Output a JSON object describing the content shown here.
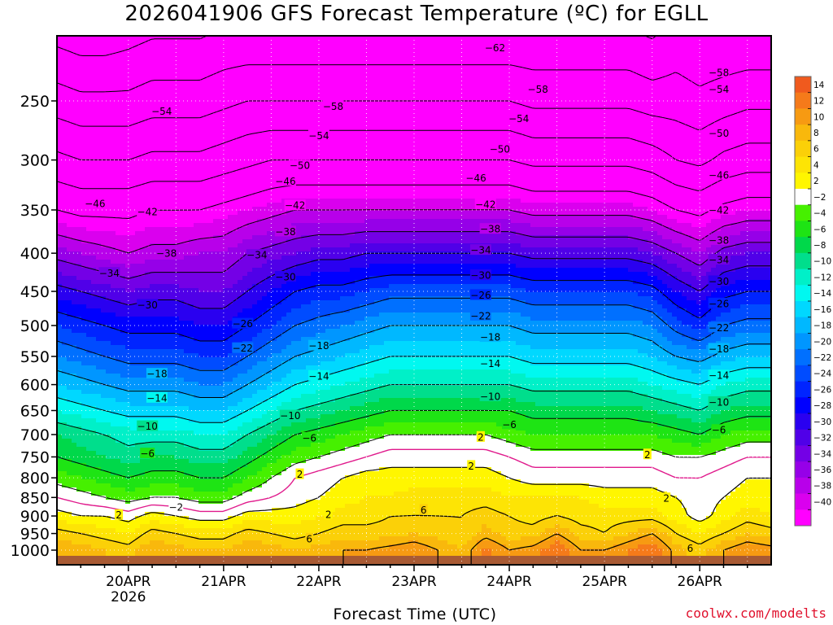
{
  "title": "2026041906 GFS Forecast Temperature (ºC) for EGLL",
  "source": "coolwx.com/modelts",
  "chart_data": {
    "type": "heatmap",
    "title": "2026041906 GFS Forecast Temperature (ºC) for EGLL",
    "xlabel": "Forecast Time (UTC)",
    "ylabel": "",
    "x_unit": "days since 2026-04-19 06Z",
    "x_range": [
      0,
      7.5
    ],
    "y_range": [
      1000,
      200
    ],
    "y_scale": "log pressure (hPa)",
    "y_ticks": [
      250,
      300,
      350,
      400,
      450,
      500,
      550,
      600,
      650,
      700,
      750,
      800,
      850,
      900,
      950,
      1000
    ],
    "x_ticks": [
      {
        "t": 0.75,
        "label": "20APR",
        "sub": "2026"
      },
      {
        "t": 1.75,
        "label": "21APR",
        "sub": ""
      },
      {
        "t": 2.75,
        "label": "22APR",
        "sub": ""
      },
      {
        "t": 3.75,
        "label": "23APR",
        "sub": ""
      },
      {
        "t": 4.75,
        "label": "24APR",
        "sub": ""
      },
      {
        "t": 5.75,
        "label": "25APR",
        "sub": ""
      },
      {
        "t": 6.75,
        "label": "26APR",
        "sub": ""
      }
    ],
    "colorbar": {
      "labels": [
        14,
        12,
        10,
        8,
        6,
        4,
        2,
        -2,
        -4,
        -6,
        -8,
        -10,
        -12,
        -14,
        -16,
        -18,
        -20,
        -22,
        -24,
        -26,
        -28,
        -30,
        -32,
        -34,
        -36,
        -38,
        -40
      ],
      "colors": [
        "#f05a1e",
        "#f57a1a",
        "#f79a12",
        "#f9b80c",
        "#fbd008",
        "#fde405",
        "#fff600",
        "#ffffff",
        "#46f000",
        "#1ee414",
        "#00d84a",
        "#00de8c",
        "#00f0c8",
        "#00f8f0",
        "#00d8ff",
        "#00b8ff",
        "#0096ff",
        "#0070ff",
        "#004cff",
        "#0024ff",
        "#0000ff",
        "#2a00f0",
        "#5000e8",
        "#7400e6",
        "#9600e8",
        "#b800ea",
        "#da00ee",
        "#ff00ff"
      ]
    },
    "isotherm_interval": 4,
    "freezing_line_color": "#e01a8c",
    "isotherms_solid": [
      2,
      6,
      10
    ],
    "isotherms_dashed": [
      -2,
      -6,
      -10,
      -14,
      -18,
      -22,
      -26,
      -30,
      -34,
      -38,
      -42,
      -46,
      -50,
      -54,
      -58,
      -62
    ],
    "times": [
      0,
      0.25,
      0.5,
      0.75,
      1,
      1.25,
      1.5,
      1.75,
      2,
      2.25,
      2.5,
      2.75,
      3,
      3.25,
      3.5,
      3.75,
      4,
      4.25,
      4.5,
      4.75,
      5,
      5.25,
      5.5,
      5.75,
      6,
      6.25,
      6.5,
      6.75,
      7,
      7.25,
      7.5
    ],
    "levels_hpa": [
      1000,
      950,
      900,
      850,
      800,
      750,
      700,
      650,
      600,
      550,
      500,
      450,
      400,
      350,
      300,
      250,
      200
    ],
    "temperature_c": [
      [
        10,
        9,
        8,
        7,
        10,
        9,
        8,
        8,
        10,
        9,
        8,
        9,
        10,
        10,
        11,
        12,
        10,
        8,
        13,
        10,
        11,
        14,
        10,
        10,
        12,
        14,
        9,
        7,
        10,
        12,
        11
      ],
      [
        7,
        6,
        5,
        4,
        7,
        6,
        5,
        5,
        7,
        6,
        5,
        6,
        7,
        7,
        7,
        8,
        7,
        6,
        9,
        7,
        7,
        10,
        7,
        6,
        8,
        10,
        6,
        4,
        6,
        8,
        7
      ],
      [
        3,
        2,
        2,
        1,
        3,
        2,
        1,
        1,
        3,
        3,
        3,
        4,
        5,
        5,
        6,
        6,
        6,
        6,
        7,
        6,
        5,
        6,
        5,
        5,
        5,
        5,
        3,
        1,
        3,
        5,
        4
      ],
      [
        0,
        -1,
        -2,
        -3,
        -2,
        -2,
        -3,
        -3,
        -1,
        0,
        1,
        2,
        3,
        4,
        4,
        5,
        5,
        5,
        5,
        4,
        4,
        4,
        4,
        3,
        3,
        3,
        2,
        1,
        2,
        3,
        3
      ],
      [
        -3,
        -4,
        -5,
        -6,
        -5,
        -5,
        -6,
        -6,
        -4,
        -2,
        0,
        1,
        2,
        3,
        3,
        3,
        3,
        3,
        3,
        2,
        1,
        1,
        1,
        1,
        1,
        1,
        0,
        0,
        1,
        2,
        2
      ],
      [
        -6,
        -7,
        -8,
        -9,
        -8,
        -8,
        -9,
        -9,
        -7,
        -5,
        -3,
        -2,
        -1,
        0,
        1,
        1,
        1,
        1,
        1,
        0,
        -1,
        -1,
        -1,
        -1,
        -1,
        -1,
        -2,
        -2,
        -1,
        0,
        0
      ],
      [
        -8,
        -9,
        -10,
        -11,
        -11,
        -11,
        -12,
        -12,
        -10,
        -8,
        -6,
        -5,
        -4,
        -3,
        -2,
        -2,
        -2,
        -2,
        -2,
        -3,
        -4,
        -4,
        -4,
        -4,
        -4,
        -4,
        -5,
        -6,
        -4,
        -3,
        -3
      ],
      [
        -12,
        -13,
        -14,
        -15,
        -15,
        -15,
        -16,
        -16,
        -14,
        -12,
        -10,
        -9,
        -8,
        -7,
        -6,
        -6,
        -6,
        -6,
        -6,
        -6,
        -7,
        -7,
        -7,
        -7,
        -7,
        -8,
        -9,
        -10,
        -8,
        -7,
        -7
      ],
      [
        -16,
        -17,
        -18,
        -19,
        -19,
        -19,
        -20,
        -20,
        -18,
        -16,
        -14,
        -13,
        -12,
        -11,
        -10,
        -10,
        -10,
        -10,
        -10,
        -10,
        -11,
        -11,
        -11,
        -11,
        -11,
        -12,
        -13,
        -14,
        -12,
        -11,
        -11
      ],
      [
        -20,
        -21,
        -22,
        -23,
        -23,
        -23,
        -24,
        -24,
        -22,
        -20,
        -18,
        -17,
        -16,
        -15,
        -14,
        -14,
        -14,
        -14,
        -14,
        -14,
        -15,
        -15,
        -15,
        -15,
        -15,
        -16,
        -18,
        -19,
        -17,
        -16,
        -16
      ],
      [
        -24,
        -25,
        -26,
        -27,
        -27,
        -27,
        -28,
        -28,
        -26,
        -24,
        -22,
        -21,
        -20,
        -19,
        -18,
        -18,
        -18,
        -18,
        -18,
        -18,
        -19,
        -19,
        -19,
        -19,
        -19,
        -20,
        -23,
        -25,
        -22,
        -21,
        -21
      ],
      [
        -29,
        -30,
        -31,
        -32,
        -31,
        -31,
        -32,
        -32,
        -30,
        -28,
        -26,
        -25,
        -25,
        -24,
        -23,
        -23,
        -23,
        -23,
        -23,
        -23,
        -24,
        -24,
        -24,
        -24,
        -24,
        -25,
        -28,
        -30,
        -27,
        -26,
        -26
      ],
      [
        -35,
        -36,
        -37,
        -38,
        -37,
        -37,
        -36,
        -36,
        -34,
        -33,
        -32,
        -31,
        -31,
        -30,
        -30,
        -30,
        -30,
        -30,
        -30,
        -30,
        -31,
        -31,
        -31,
        -31,
        -31,
        -32,
        -34,
        -36,
        -33,
        -32,
        -32
      ],
      [
        -42,
        -43,
        -43,
        -43,
        -42,
        -42,
        -42,
        -41,
        -40,
        -39,
        -38,
        -38,
        -38,
        -38,
        -38,
        -38,
        -38,
        -38,
        -38,
        -38,
        -39,
        -39,
        -39,
        -39,
        -39,
        -40,
        -42,
        -43,
        -41,
        -40,
        -40
      ],
      [
        -49,
        -50,
        -50,
        -50,
        -49,
        -49,
        -49,
        -48,
        -47,
        -46,
        -46,
        -46,
        -46,
        -46,
        -46,
        -46,
        -46,
        -46,
        -46,
        -46,
        -47,
        -47,
        -47,
        -47,
        -47,
        -48,
        -50,
        -51,
        -49,
        -48,
        -48
      ],
      [
        -56,
        -57,
        -57,
        -57,
        -56,
        -56,
        -56,
        -55,
        -54,
        -54,
        -54,
        -54,
        -54,
        -54,
        -54,
        -54,
        -54,
        -54,
        -54,
        -54,
        -55,
        -55,
        -55,
        -55,
        -55,
        -56,
        -56,
        -57,
        -56,
        -55,
        -55
      ],
      [
        -64,
        -65,
        -65,
        -64,
        -63,
        -63,
        -63,
        -62,
        -62,
        -62,
        -62,
        -62,
        -62,
        -62,
        -62,
        -62,
        -62,
        -62,
        -62,
        -62,
        -62,
        -62,
        -62,
        -62,
        -62,
        -63,
        -61,
        -62,
        -62,
        -62,
        -62
      ]
    ],
    "contour_labels": [
      {
        "v": -62,
        "t": 4.6,
        "p": 212
      },
      {
        "v": -58,
        "t": 2.9,
        "p": 254
      },
      {
        "v": -58,
        "t": 5.05,
        "p": 241
      },
      {
        "v": -58,
        "t": 6.95,
        "p": 229
      },
      {
        "v": -54,
        "t": 1.1,
        "p": 258
      },
      {
        "v": -54,
        "t": 2.75,
        "p": 278
      },
      {
        "v": -54,
        "t": 4.85,
        "p": 264
      },
      {
        "v": -54,
        "t": 6.95,
        "p": 241
      },
      {
        "v": -50,
        "t": 2.55,
        "p": 305
      },
      {
        "v": -50,
        "t": 4.65,
        "p": 290
      },
      {
        "v": -50,
        "t": 6.95,
        "p": 276
      },
      {
        "v": -46,
        "t": 0.4,
        "p": 343
      },
      {
        "v": -46,
        "t": 2.4,
        "p": 320
      },
      {
        "v": -46,
        "t": 4.4,
        "p": 317
      },
      {
        "v": -46,
        "t": 6.95,
        "p": 314
      },
      {
        "v": -42,
        "t": 0.95,
        "p": 352
      },
      {
        "v": -42,
        "t": 2.5,
        "p": 345
      },
      {
        "v": -42,
        "t": 4.5,
        "p": 344
      },
      {
        "v": -42,
        "t": 6.95,
        "p": 350
      },
      {
        "v": -38,
        "t": 1.15,
        "p": 400
      },
      {
        "v": -38,
        "t": 2.4,
        "p": 374
      },
      {
        "v": -38,
        "t": 4.55,
        "p": 371
      },
      {
        "v": -38,
        "t": 6.95,
        "p": 384
      },
      {
        "v": -34,
        "t": 0.55,
        "p": 425
      },
      {
        "v": -34,
        "t": 2.1,
        "p": 402
      },
      {
        "v": -34,
        "t": 4.45,
        "p": 396
      },
      {
        "v": -34,
        "t": 6.95,
        "p": 408
      },
      {
        "v": -30,
        "t": 0.95,
        "p": 469
      },
      {
        "v": -30,
        "t": 2.4,
        "p": 430
      },
      {
        "v": -30,
        "t": 4.45,
        "p": 428
      },
      {
        "v": -30,
        "t": 6.95,
        "p": 436
      },
      {
        "v": -26,
        "t": 1.95,
        "p": 497
      },
      {
        "v": -26,
        "t": 4.45,
        "p": 455
      },
      {
        "v": -26,
        "t": 6.95,
        "p": 467
      },
      {
        "v": -22,
        "t": 1.95,
        "p": 536
      },
      {
        "v": -22,
        "t": 4.45,
        "p": 485
      },
      {
        "v": -22,
        "t": 6.95,
        "p": 503
      },
      {
        "v": -18,
        "t": 1.05,
        "p": 580
      },
      {
        "v": -18,
        "t": 2.75,
        "p": 532
      },
      {
        "v": -18,
        "t": 4.55,
        "p": 518
      },
      {
        "v": -18,
        "t": 6.95,
        "p": 537
      },
      {
        "v": -14,
        "t": 1.05,
        "p": 625
      },
      {
        "v": -14,
        "t": 2.75,
        "p": 584
      },
      {
        "v": -14,
        "t": 4.55,
        "p": 562
      },
      {
        "v": -14,
        "t": 6.95,
        "p": 583
      },
      {
        "v": -10,
        "t": 0.95,
        "p": 682
      },
      {
        "v": -10,
        "t": 2.45,
        "p": 660
      },
      {
        "v": -10,
        "t": 4.55,
        "p": 622
      },
      {
        "v": -10,
        "t": 6.95,
        "p": 633
      },
      {
        "v": -6,
        "t": 0.95,
        "p": 742
      },
      {
        "v": -6,
        "t": 2.65,
        "p": 707
      },
      {
        "v": -6,
        "t": 4.75,
        "p": 678
      },
      {
        "v": -6,
        "t": 6.95,
        "p": 690
      },
      {
        "v": -2,
        "t": 1.25,
        "p": 875
      },
      {
        "v": 2,
        "t": 0.65,
        "p": 897
      },
      {
        "v": 2,
        "t": 2.55,
        "p": 791
      },
      {
        "v": 2,
        "t": 2.85,
        "p": 895
      },
      {
        "v": 2,
        "t": 4.45,
        "p": 705
      },
      {
        "v": 2,
        "t": 4.35,
        "p": 771
      },
      {
        "v": 2,
        "t": 6.2,
        "p": 744
      },
      {
        "v": 2,
        "t": 6.4,
        "p": 852
      },
      {
        "v": 6,
        "t": 3.85,
        "p": 883
      },
      {
        "v": 6,
        "t": 2.65,
        "p": 965
      },
      {
        "v": 6,
        "t": 6.65,
        "p": 994
      }
    ]
  }
}
